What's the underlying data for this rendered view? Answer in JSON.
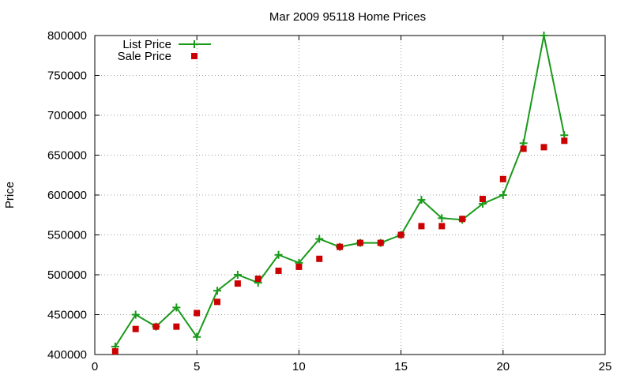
{
  "chart_data": {
    "type": "line",
    "title": "Mar 2009 95118 Home Prices",
    "xlabel": "",
    "ylabel": "Price",
    "xlim": [
      0,
      25
    ],
    "ylim": [
      400000,
      800000
    ],
    "x_ticks": [
      0,
      5,
      10,
      15,
      20,
      25
    ],
    "y_ticks": [
      400000,
      450000,
      500000,
      550000,
      600000,
      650000,
      700000,
      750000,
      800000
    ],
    "grid": true,
    "legend_position": "top-left",
    "series": [
      {
        "name": "List Price",
        "style": "line+cross",
        "color": "#1a9a1a",
        "x": [
          1,
          2,
          3,
          4,
          5,
          6,
          7,
          8,
          9,
          10,
          11,
          12,
          13,
          14,
          15,
          16,
          17,
          18,
          19,
          20,
          21,
          22,
          23
        ],
        "values": [
          410000,
          450000,
          435000,
          459000,
          422000,
          480000,
          500000,
          490000,
          525000,
          515000,
          545000,
          535000,
          540000,
          540000,
          550000,
          594000,
          571000,
          569000,
          589000,
          600000,
          665000,
          800000,
          675000
        ]
      },
      {
        "name": "Sale Price",
        "style": "square",
        "color": "#cc0000",
        "x": [
          1,
          2,
          3,
          4,
          5,
          6,
          7,
          8,
          9,
          10,
          11,
          12,
          13,
          14,
          15,
          16,
          17,
          18,
          19,
          20,
          21,
          22,
          23
        ],
        "values": [
          404000,
          432000,
          435000,
          435000,
          452000,
          466000,
          489000,
          495000,
          505000,
          510000,
          520000,
          535000,
          540000,
          540000,
          550000,
          561000,
          561000,
          570000,
          595000,
          620000,
          658000,
          660000,
          668000
        ]
      }
    ]
  }
}
